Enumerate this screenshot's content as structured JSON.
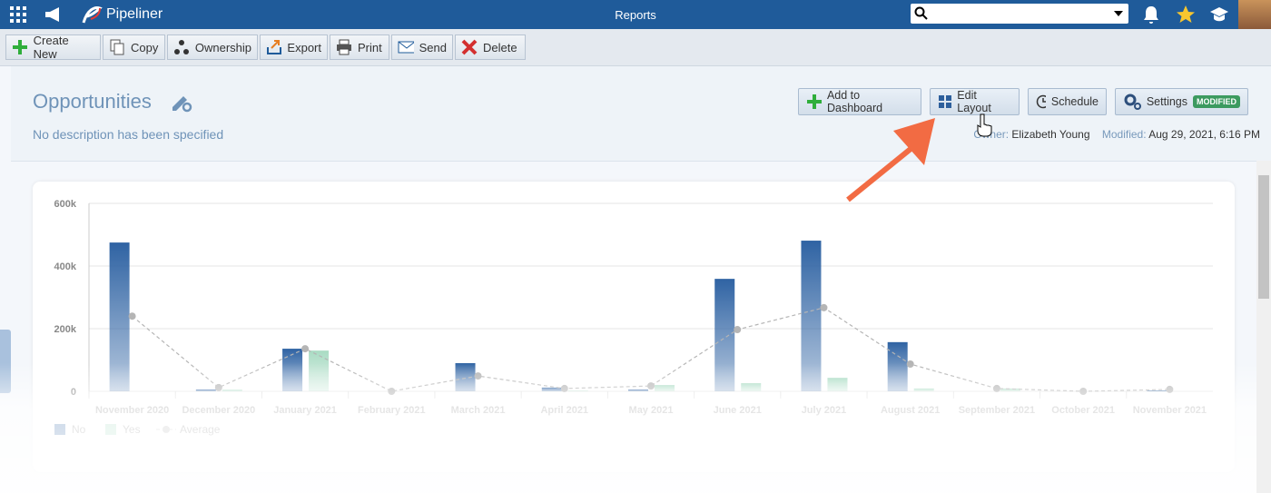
{
  "header": {
    "app_name": "Pipeliner",
    "page_title": "Reports"
  },
  "toolbar": [
    "Create New",
    "Copy",
    "Ownership",
    "Export",
    "Print",
    "Send",
    "Delete"
  ],
  "report": {
    "title": "Opportunities",
    "description": "No description has been specified",
    "actions": [
      "Add to Dashboard",
      "Edit Layout",
      "Schedule",
      "Settings"
    ],
    "badge": "MODIFIED",
    "owner_label": "Owner:",
    "owner": "Elizabeth Young",
    "modified_label": "Modified:",
    "modified": "Aug 29, 2021, 6:16 PM"
  },
  "chart_data": {
    "type": "bar",
    "categories": [
      "November 2020",
      "December 2020",
      "January 2021",
      "February 2021",
      "March 2021",
      "April 2021",
      "May 2021",
      "June 2021",
      "July 2021",
      "August 2021",
      "September 2021",
      "October 2021",
      "November 2021"
    ],
    "series": [
      {
        "name": "No",
        "color": "#2f63a3",
        "values": [
          475000,
          6000,
          136000,
          0,
          90000,
          12000,
          6000,
          359000,
          481000,
          157000,
          0,
          0,
          3000
        ]
      },
      {
        "name": "Yes",
        "color": "#a9dbc3",
        "values": [
          0,
          5000,
          130000,
          0,
          0,
          2000,
          20000,
          26000,
          43000,
          9000,
          9000,
          0,
          0
        ]
      },
      {
        "name": "Average",
        "type": "line",
        "color": "#b5b5b5",
        "values": [
          240000,
          12000,
          136000,
          0,
          49000,
          9000,
          17000,
          197000,
          267000,
          87000,
          9000,
          0,
          6000
        ]
      }
    ],
    "ylim": [
      0,
      600000
    ],
    "yticks": [
      0,
      {
        "value": 200000,
        "label": "200k"
      },
      {
        "value": 400000,
        "label": "400k"
      },
      {
        "value": 600000,
        "label": "600k"
      }
    ],
    "grid": true
  }
}
